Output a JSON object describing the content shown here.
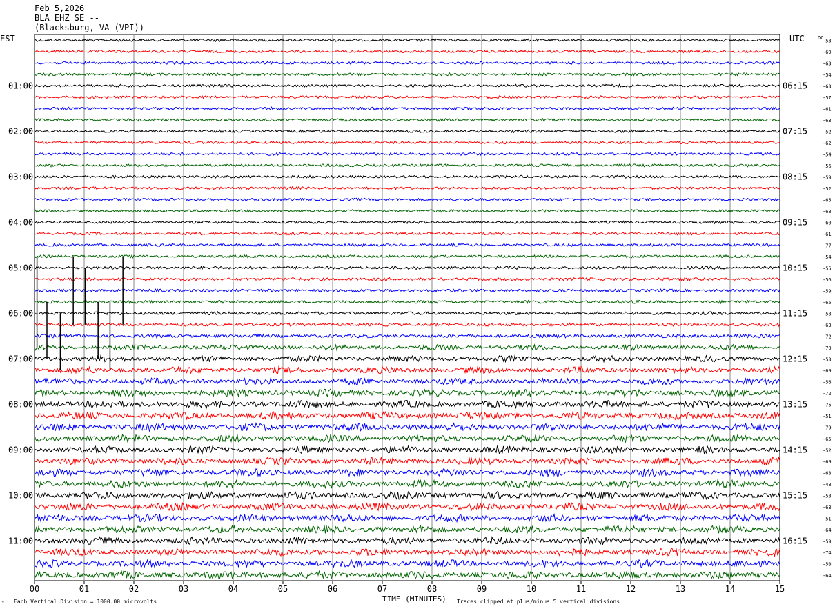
{
  "header": {
    "date": "Feb 5,2026",
    "station": "BLA EHZ SE --",
    "location": "(Blacksburg, VA (VPI))"
  },
  "axes": {
    "left_tz": "EST",
    "right_tz": "UTC",
    "dc_label": "DC",
    "x_title": "TIME (MINUTES)"
  },
  "footer": {
    "scale_note": "Each Vertical Division = 1000.00 microvolts",
    "clip_note": "Traces clipped at plus/minus 5 vertical divisions"
  },
  "colors": {
    "traces": [
      "#000000",
      "#ff0000",
      "#0000ff",
      "#006400"
    ],
    "grid": "#888888"
  },
  "chart_data": {
    "type": "line",
    "subtype": "helicorder",
    "title": "BLA EHZ SE -- (Blacksburg, VA (VPI)) Feb 5,2026",
    "xlabel": "TIME (MINUTES)",
    "xlim": [
      0,
      15
    ],
    "x_ticks": [
      "00",
      "01",
      "02",
      "03",
      "04",
      "05",
      "06",
      "07",
      "08",
      "09",
      "10",
      "11",
      "12",
      "13",
      "14",
      "15"
    ],
    "rows_per_hour": 4,
    "minutes_per_row": 15,
    "left_labels": [
      {
        "row": 4,
        "text": "01:00"
      },
      {
        "row": 8,
        "text": "02:00"
      },
      {
        "row": 12,
        "text": "03:00"
      },
      {
        "row": 16,
        "text": "04:00"
      },
      {
        "row": 20,
        "text": "05:00"
      },
      {
        "row": 24,
        "text": "06:00"
      },
      {
        "row": 28,
        "text": "07:00"
      },
      {
        "row": 32,
        "text": "08:00"
      },
      {
        "row": 36,
        "text": "09:00"
      },
      {
        "row": 40,
        "text": "10:00"
      },
      {
        "row": 44,
        "text": "11:00"
      }
    ],
    "right_labels": [
      {
        "row": 4,
        "text": "06:15"
      },
      {
        "row": 8,
        "text": "07:15"
      },
      {
        "row": 12,
        "text": "08:15"
      },
      {
        "row": 16,
        "text": "09:15"
      },
      {
        "row": 20,
        "text": "10:15"
      },
      {
        "row": 24,
        "text": "11:15"
      },
      {
        "row": 28,
        "text": "12:15"
      },
      {
        "row": 32,
        "text": "13:15"
      },
      {
        "row": 36,
        "text": "14:15"
      },
      {
        "row": 40,
        "text": "15:15"
      },
      {
        "row": 44,
        "text": "16:15"
      }
    ],
    "dc_offsets": [
      -53,
      -69,
      -63,
      -54,
      -63,
      -57,
      -61,
      -63,
      -52,
      -62,
      -54,
      -56,
      -59,
      -52,
      -65,
      -68,
      -60,
      -61,
      -77,
      -54,
      -55,
      -56,
      -59,
      -65,
      -58,
      -63,
      -72,
      -70,
      -53,
      -69,
      -56,
      -72,
      -75,
      -51,
      -79,
      -65,
      -52,
      -69,
      -63,
      -48,
      -53,
      -63,
      -51,
      -64,
      -59,
      -74,
      -50,
      -64
    ],
    "noise_level": [
      1.0,
      1.0,
      1.0,
      1.0,
      1.0,
      1.0,
      1.0,
      1.0,
      1.0,
      1.0,
      1.0,
      1.0,
      1.0,
      1.0,
      1.0,
      1.0,
      1.0,
      1.0,
      1.0,
      1.0,
      1.1,
      1.1,
      1.1,
      1.2,
      1.2,
      1.2,
      1.3,
      1.4,
      1.6,
      1.8,
      1.8,
      2.0,
      2.0,
      2.0,
      2.0,
      2.0,
      2.0,
      2.0,
      2.0,
      2.0,
      2.0,
      2.0,
      2.0,
      2.0,
      2.0,
      2.0,
      2.0,
      2.0
    ],
    "spikes": [
      {
        "minute": 0.05,
        "row_from": 19,
        "row_to": 27,
        "color": "#000000"
      },
      {
        "minute": 0.25,
        "row_from": 23,
        "row_to": 28,
        "color": "#000000"
      },
      {
        "minute": 0.52,
        "row_from": 24,
        "row_to": 29,
        "color": "#000000"
      },
      {
        "minute": 0.78,
        "row_from": 19,
        "row_to": 25,
        "color": "#000000"
      },
      {
        "minute": 1.02,
        "row_from": 20,
        "row_to": 25,
        "color": "#000000"
      },
      {
        "minute": 1.28,
        "row_from": 23,
        "row_to": 28,
        "color": "#000000"
      },
      {
        "minute": 1.52,
        "row_from": 23,
        "row_to": 29,
        "color": "#000000"
      },
      {
        "minute": 1.78,
        "row_from": 19,
        "row_to": 25,
        "color": "#000000"
      }
    ]
  }
}
